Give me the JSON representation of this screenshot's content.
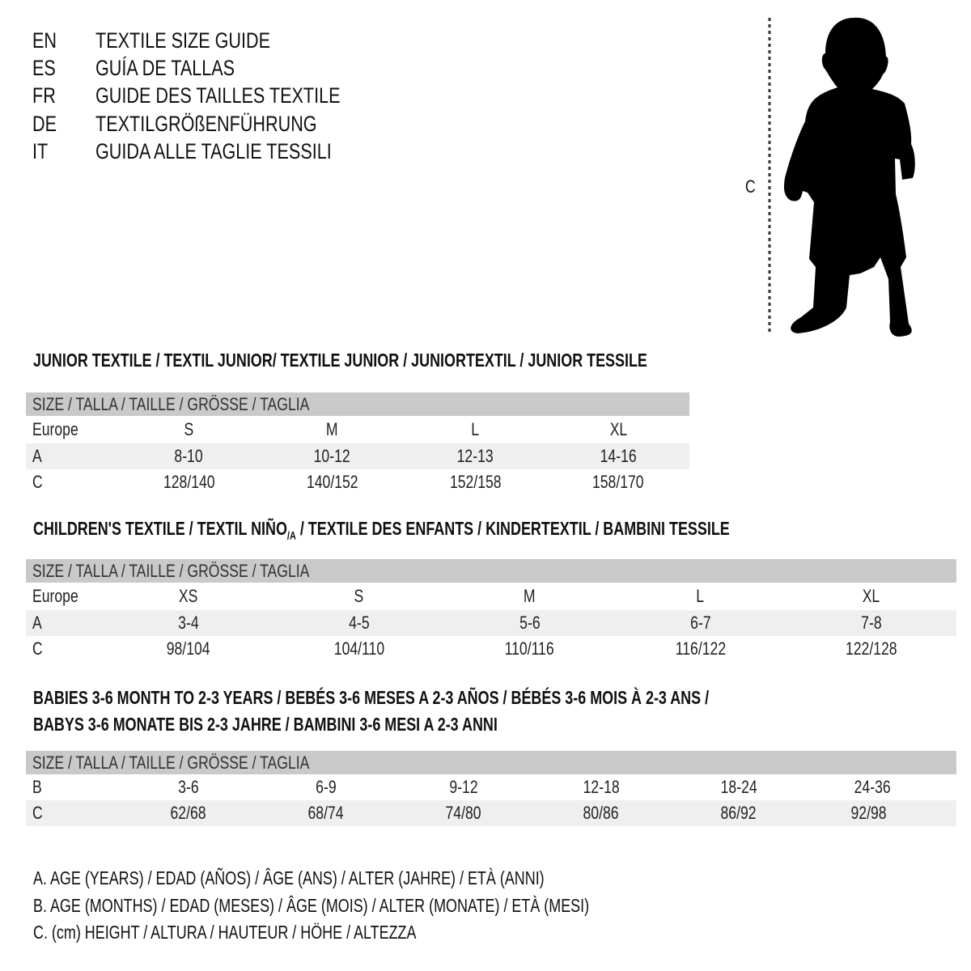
{
  "titles": [
    {
      "code": "EN",
      "text": "TEXTILE SIZE GUIDE"
    },
    {
      "code": "ES",
      "text": "GUÍA DE TALLAS"
    },
    {
      "code": "FR",
      "text": "GUIDE DES TAILLES TEXTILE"
    },
    {
      "code": "DE",
      "text": "TEXTILGRÖßENFÜHRUNG"
    },
    {
      "code": "IT",
      "text": "GUIDA ALLE TAGLIE TESSILI"
    }
  ],
  "figure": {
    "icon": "child-silhouette-icon",
    "measure_label": "C"
  },
  "junior": {
    "heading": "JUNIOR TEXTILE / TEXTIL JUNIOR/ TEXTILE JUNIOR / JUNIORTEXTIL / JUNIOR TESSILE",
    "header": "SIZE / TALLA / TAILLE / GRÖSSE / TAGLIA",
    "rows": [
      {
        "label": "Europe",
        "values": [
          "S",
          "M",
          "L",
          "XL"
        ]
      },
      {
        "label": "A",
        "values": [
          "8-10",
          "10-12",
          "12-13",
          "14-16"
        ]
      },
      {
        "label": "C",
        "values": [
          "128/140",
          "140/152",
          "152/158",
          "158/170"
        ]
      }
    ]
  },
  "children": {
    "heading_part1": "CHILDREN'S TEXTILE / TEXTIL NIÑO",
    "heading_sub": "/A",
    "heading_part2": " / TEXTILE DES ENFANTS / KINDERTEXTIL / BAMBINI TESSILE",
    "header": "SIZE / TALLA / TAILLE / GRÖSSE / TAGLIA",
    "rows": [
      {
        "label": "Europe",
        "values": [
          "XS",
          "S",
          "M",
          "L",
          "XL"
        ]
      },
      {
        "label": "A",
        "values": [
          "3-4",
          "4-5",
          "5-6",
          "6-7",
          "7-8"
        ]
      },
      {
        "label": "C",
        "values": [
          "98/104",
          "104/110",
          "110/116",
          "116/122",
          "122/128"
        ]
      }
    ]
  },
  "babies": {
    "heading_line1": "BABIES 3-6 MONTH TO 2-3 YEARS / BEBÉS 3-6 MESES A 2-3 AÑOS / BÉBÉS 3-6 MOIS À 2-3 ANS /",
    "heading_line2": "BABYS 3-6 MONATE BIS 2-3 JAHRE / BAMBINI 3-6 MESI A 2-3 ANNI",
    "header": "SIZE / TALLA / TAILLE / GRÖSSE / TAGLIA",
    "rows": [
      {
        "label": "B",
        "values": [
          "3-6",
          "6-9",
          "9-12",
          "12-18",
          "18-24",
          "24-36"
        ]
      },
      {
        "label": "C",
        "values": [
          "62/68",
          "68/74",
          "74/80",
          "80/86",
          "86/92",
          "92/98"
        ]
      }
    ]
  },
  "legend": [
    "A. AGE (YEARS) / EDAD (AÑOS) / ÂGE (ANS) / ALTER (JAHRE) / ETÀ (ANNI)",
    "B. AGE (MONTHS) / EDAD (MESES) / ÂGE (MOIS) / ALTER (MONATE) / ETÀ (MESI)",
    "C. (cm) HEIGHT / ALTURA / HAUTEUR / HÖHE / ALTEZZA"
  ]
}
